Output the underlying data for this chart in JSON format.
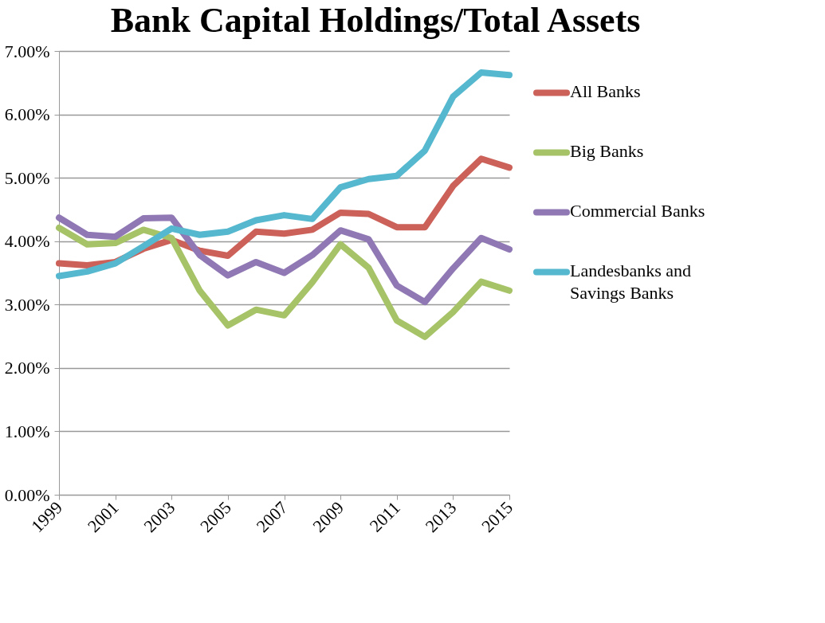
{
  "chart_data": {
    "type": "line",
    "title": "Bank Capital Holdings/Total Assets",
    "x": [
      1999,
      2000,
      2001,
      2002,
      2003,
      2004,
      2005,
      2006,
      2007,
      2008,
      2009,
      2010,
      2011,
      2012,
      2013,
      2014,
      2015
    ],
    "xlim": [
      1999,
      2015
    ],
    "xticks": [
      1999,
      2001,
      2003,
      2005,
      2007,
      2009,
      2011,
      2013,
      2015
    ],
    "ylim": [
      0,
      7
    ],
    "yticks": [
      {
        "value": 0,
        "label": "0.00%"
      },
      {
        "value": 1,
        "label": "1.00%"
      },
      {
        "value": 2,
        "label": "2.00%"
      },
      {
        "value": 3,
        "label": "3.00%"
      },
      {
        "value": 4,
        "label": "4.00%"
      },
      {
        "value": 5,
        "label": "5.00%"
      },
      {
        "value": 6,
        "label": "6.00%"
      },
      {
        "value": 7,
        "label": "7.00%"
      }
    ],
    "grid": "y",
    "legend": "right",
    "marker": "none",
    "line_style": "solid",
    "series": [
      {
        "name": "All Banks",
        "color": "#cc6159",
        "values": [
          3.65,
          3.62,
          3.67,
          3.88,
          4.02,
          3.85,
          3.77,
          4.15,
          4.12,
          4.18,
          4.45,
          4.43,
          4.22,
          4.22,
          4.87,
          5.3,
          5.16
        ]
      },
      {
        "name": "Big Banks",
        "color": "#a7c367",
        "values": [
          4.21,
          3.95,
          3.97,
          4.18,
          4.05,
          3.22,
          2.67,
          2.92,
          2.83,
          3.35,
          3.95,
          3.58,
          2.75,
          2.49,
          2.88,
          3.36,
          3.22
        ]
      },
      {
        "name": "Commercial Banks",
        "color": "#8f78b3",
        "values": [
          4.37,
          4.1,
          4.07,
          4.36,
          4.37,
          3.78,
          3.46,
          3.67,
          3.5,
          3.78,
          4.17,
          4.03,
          3.3,
          3.04,
          3.57,
          4.05,
          3.87
        ]
      },
      {
        "name": "Landesbanks and Savings Banks",
        "color": "#55b8cf",
        "values": [
          3.45,
          3.52,
          3.65,
          3.92,
          4.2,
          4.1,
          4.15,
          4.33,
          4.41,
          4.35,
          4.85,
          4.98,
          5.03,
          5.43,
          6.28,
          6.66,
          6.62
        ]
      }
    ]
  }
}
